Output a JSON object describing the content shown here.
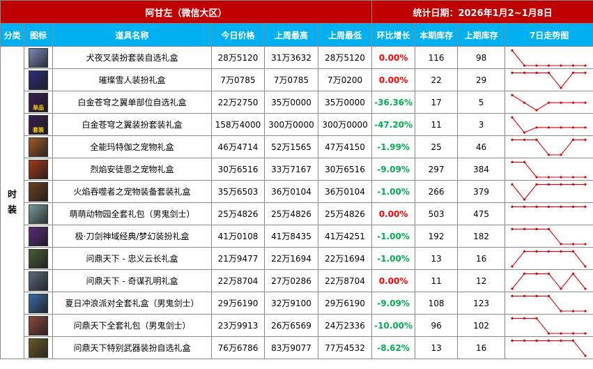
{
  "title": {
    "left": "阿甘左（微信大区）",
    "right": "统计日期：2026年1月2~1月8日"
  },
  "headers": [
    "分类",
    "图标",
    "道具名称",
    "今日价格",
    "上周最高",
    "上周最低",
    "环比增长",
    "本期库存",
    "上期库存",
    "7日走势图"
  ],
  "category": "时装",
  "colors": {
    "title_bg": "#c00000",
    "header_bg": "#00b0f0",
    "up": "#ff0000",
    "down": "#00b050",
    "spark": "#e00000"
  },
  "rows": [
    {
      "icon": "inuyasha-portrait-icon",
      "icon_bg": "#7b88b8",
      "icon_text": "",
      "name": "犬夜叉装扮套装自选礼盒",
      "today": "28万5120",
      "high": "31万3632",
      "low": "28万5120",
      "change": "0.00%",
      "dir": "zero",
      "stock": "116",
      "prev": "98",
      "trend": [
        6,
        0,
        0,
        0,
        0,
        0,
        0
      ]
    },
    {
      "icon": "snowman-box-icon",
      "icon_bg": "#2c2f7a",
      "icon_text": "",
      "name": "璀璨雪人装扮礼盒",
      "today": "7万0785",
      "high": "7万0785",
      "low": "7万0200",
      "change": "0.00%",
      "dir": "zero",
      "stock": "22",
      "prev": "29",
      "trend": [
        6,
        6,
        6,
        6,
        0,
        6,
        6
      ]
    },
    {
      "icon": "wing-part-box-icon",
      "icon_bg": "#3a1f4f",
      "icon_text": "单品",
      "name": "白金苍穹之翼单部位自选礼盒",
      "today": "22万2750",
      "high": "35万0000",
      "low": "35万0000",
      "change": "-36.36%",
      "dir": "neg",
      "stock": "17",
      "prev": "5",
      "trend": [
        6,
        3,
        0,
        3,
        3,
        3,
        3
      ]
    },
    {
      "icon": "wing-set-box-icon",
      "icon_bg": "#3a1f4f",
      "icon_text": "套装",
      "name": "白金苍穹之翼装扮套装礼盒",
      "today": "158万4000",
      "high": "300万0000",
      "low": "300万0000",
      "change": "-47.20%",
      "dir": "neg",
      "stock": "11",
      "prev": "3",
      "trend": [
        6,
        0,
        2,
        2,
        2,
        2,
        2
      ]
    },
    {
      "icon": "tera-pet-box-icon",
      "icon_bg": "#9a5a2a",
      "icon_text": "",
      "name": "全能玛特伽之宠物礼盒",
      "today": "46万4714",
      "high": "52万1565",
      "low": "47万4150",
      "change": "-1.99%",
      "dir": "neg",
      "stock": "25",
      "prev": "46",
      "trend": [
        6,
        6,
        6,
        0,
        0,
        6,
        6
      ]
    },
    {
      "icon": "flame-pet-box-icon",
      "icon_bg": "#a03a1a",
      "icon_text": "",
      "name": "烈焰安徒恩之宠物礼盒",
      "today": "30万6516",
      "high": "33万7167",
      "low": "30万6516",
      "change": "-9.09%",
      "dir": "neg",
      "stock": "297",
      "prev": "384",
      "trend": [
        6,
        6,
        0,
        0,
        0,
        0,
        0
      ]
    },
    {
      "icon": "flame-equip-box-icon",
      "icon_bg": "#6a4020",
      "icon_text": "",
      "name": "火焰吞噬者之宠物装备套装礼盒",
      "today": "35万6503",
      "high": "36万0104",
      "low": "36万0104",
      "change": "-1.00%",
      "dir": "neg",
      "stock": "266",
      "prev": "379",
      "trend": [
        6,
        0,
        6,
        6,
        6,
        6,
        6
      ]
    },
    {
      "icon": "animal-park-box-icon",
      "icon_bg": "#7a9a9a",
      "icon_text": "",
      "name": "萌萌动物园全套礼包（男鬼剑士）",
      "today": "25万4826",
      "high": "25万4826",
      "low": "25万4826",
      "change": "0.00%",
      "dir": "zero",
      "stock": "503",
      "prev": "475",
      "trend": [
        6,
        6,
        6,
        6,
        6,
        6,
        6
      ]
    },
    {
      "icon": "blade-classic-box-icon",
      "icon_bg": "#5a2a7a",
      "icon_text": "",
      "name": "极·刀剑神域经典/梦幻装扮礼盒",
      "today": "41万0108",
      "high": "41万8435",
      "low": "41万4251",
      "change": "-1.00%",
      "dir": "neg",
      "stock": "192",
      "prev": "182",
      "trend": [
        6,
        6,
        6,
        6,
        0,
        0,
        0
      ]
    },
    {
      "icon": "guan-yu-portrait-icon",
      "icon_bg": "#4a5a3a",
      "icon_text": "",
      "name": "问鼎天下 - 忠义云长礼盒",
      "today": "21万9477",
      "high": "22万1694",
      "low": "22万1694",
      "change": "-1.00%",
      "dir": "neg",
      "stock": "13",
      "prev": "16",
      "trend": [
        0,
        6,
        6,
        6,
        6,
        6,
        0
      ]
    },
    {
      "icon": "zhuge-liang-portrait-icon",
      "icon_bg": "#5a6a7a",
      "icon_text": "",
      "name": "问鼎天下 - 奇谋孔明礼盒",
      "today": "22万8704",
      "high": "27万0286",
      "low": "22万8704",
      "change": "0.00%",
      "dir": "zero",
      "stock": "11",
      "prev": "12",
      "trend": [
        0,
        6,
        6,
        6,
        0,
        6,
        0
      ]
    },
    {
      "icon": "summer-surf-box-icon",
      "icon_bg": "#3a6aa0",
      "icon_text": "",
      "name": "夏日冲浪派对全套礼盒（男鬼剑士）",
      "today": "29万6190",
      "high": "32万9100",
      "low": "29万6190",
      "change": "-9.09%",
      "dir": "neg",
      "stock": "108",
      "prev": "123",
      "trend": [
        6,
        6,
        6,
        6,
        0,
        0,
        0
      ]
    },
    {
      "icon": "tianxia-set-box-icon",
      "icon_bg": "#8a4a3a",
      "icon_text": "",
      "name": "问鼎天下全套礼包（男鬼剑士）",
      "today": "23万9913",
      "high": "26万6569",
      "low": "24万2336",
      "change": "-10.00%",
      "dir": "neg",
      "stock": "96",
      "prev": "102",
      "trend": [
        6,
        6,
        6,
        0,
        0,
        0,
        0
      ]
    },
    {
      "icon": "tianxia-weapon-box-icon",
      "icon_bg": "#6a5a2a",
      "icon_text": "",
      "name": "问鼎天下特别武器装扮自选礼盒",
      "today": "76万6786",
      "high": "83万9077",
      "low": "77万4532",
      "change": "-8.62%",
      "dir": "neg",
      "stock": "13",
      "prev": "16",
      "trend": [
        6,
        6,
        6,
        6,
        6,
        6,
        0
      ]
    }
  ]
}
